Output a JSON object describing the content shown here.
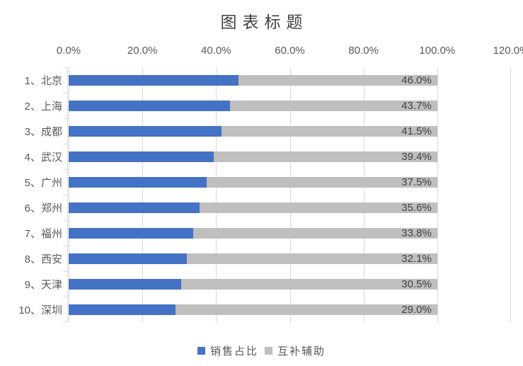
{
  "chart_data": {
    "type": "bar",
    "orientation": "horizontal",
    "stacked": true,
    "title": "图表标题",
    "x_tick_labels": [
      "0.0%",
      "20.0%",
      "40.0%",
      "60.0%",
      "80.0%",
      "100.0%",
      "120.0%"
    ],
    "xlim": [
      0,
      120
    ],
    "grid": true,
    "legend_position": "bottom",
    "categories": [
      "1、北京",
      "2、上海",
      "3、成都",
      "4、武汉",
      "5、广州",
      "6、郑州",
      "7、福州",
      "8、西安",
      "9、天津",
      "10、深圳"
    ],
    "series": [
      {
        "name": "销售占比",
        "color": "#4472C4",
        "values": [
          46.0,
          43.7,
          41.5,
          39.4,
          37.5,
          35.6,
          33.8,
          32.1,
          30.5,
          29.0
        ]
      },
      {
        "name": "互补辅助",
        "color": "#BFBFBF",
        "values": [
          54.0,
          56.3,
          58.5,
          60.6,
          62.5,
          64.4,
          66.2,
          67.9,
          69.5,
          71.0
        ]
      }
    ],
    "data_labels": [
      "46.0%",
      "43.7%",
      "41.5%",
      "39.4%",
      "37.5%",
      "35.6%",
      "33.8%",
      "32.1%",
      "30.5%",
      "29.0%"
    ],
    "colors": {
      "accent_blue": "#4472C4",
      "fill_gray": "#BFBFBF",
      "axis_gray": "#D9D9D9",
      "tick_text": "#595959",
      "data_label_text": "#404040",
      "title_text": "#404040"
    }
  }
}
